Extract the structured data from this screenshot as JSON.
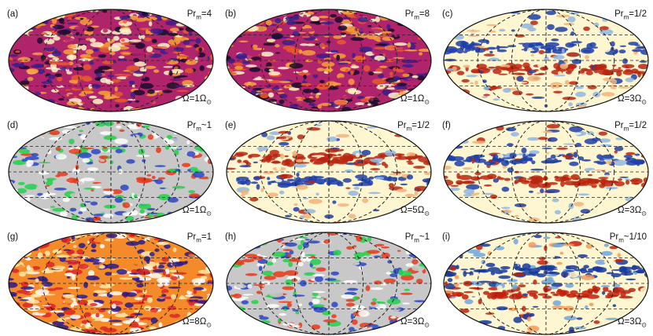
{
  "figure": {
    "panels": [
      {
        "label": "(a)",
        "pr": "Pr",
        "pr_sub": "m",
        "pr_val": "=4",
        "om": "Ω=1Ω",
        "om_sub": "⊙",
        "palette": "fire"
      },
      {
        "label": "(b)",
        "pr": "Pr",
        "pr_sub": "m",
        "pr_val": "=8",
        "om": "Ω=1Ω",
        "om_sub": "⊙",
        "palette": "fire"
      },
      {
        "label": "(c)",
        "pr": "Pr",
        "pr_sub": "m",
        "pr_val": "=1/2",
        "om": "Ω=3Ω",
        "om_sub": "⊙",
        "palette": "bwr_bands"
      },
      {
        "label": "(d)",
        "pr": "Pr",
        "pr_sub": "m",
        "pr_val": "~1",
        "om": "Ω=1Ω",
        "om_sub": "⊙",
        "palette": "gray_multi"
      },
      {
        "label": "(e)",
        "pr": "Pr",
        "pr_sub": "m",
        "pr_val": "=1/2",
        "om": "Ω=5Ω",
        "om_sub": "⊙",
        "palette": "bwr_bands"
      },
      {
        "label": "(f)",
        "pr": "Pr",
        "pr_sub": "m",
        "pr_val": "=1/2",
        "om": "Ω=3Ω",
        "om_sub": "⊙",
        "palette": "bwr_bands"
      },
      {
        "label": "(g)",
        "pr": "Pr",
        "pr_sub": "m",
        "pr_val": "=1",
        "om": "Ω=8Ω",
        "om_sub": "⊙",
        "palette": "fire_bands"
      },
      {
        "label": "(h)",
        "pr": "Pr",
        "pr_sub": "m",
        "pr_val": "~1",
        "om": "Ω=3Ω",
        "om_sub": "⊙",
        "palette": "gray_multi"
      },
      {
        "label": "(i)",
        "pr": "Pr",
        "pr_sub": "m",
        "pr_val": "~1/10",
        "om": "Ω=3Ω",
        "om_sub": "⊙",
        "palette": "bwr_strong"
      }
    ],
    "palettes": {
      "fire": [
        "#1a0a2e",
        "#3b1e8c",
        "#b0246b",
        "#e85a2c",
        "#f7a13a",
        "#fff4c8"
      ],
      "fire_bands": [
        "#2a1a8a",
        "#d92626",
        "#f58a2a",
        "#ffe9a8",
        "#ffffff"
      ],
      "bwr_bands": [
        "#1f3fa8",
        "#8fb6e0",
        "#fdf6d0",
        "#f2b27a",
        "#b8260f"
      ],
      "bwr_strong": [
        "#163a9e",
        "#6fa6dc",
        "#fdf6d0",
        "#f29a5a",
        "#c0200a"
      ],
      "gray_multi": [
        "#c8c8c8",
        "#2a46c8",
        "#22d04a",
        "#e83a1a",
        "#ffffff"
      ]
    }
  }
}
